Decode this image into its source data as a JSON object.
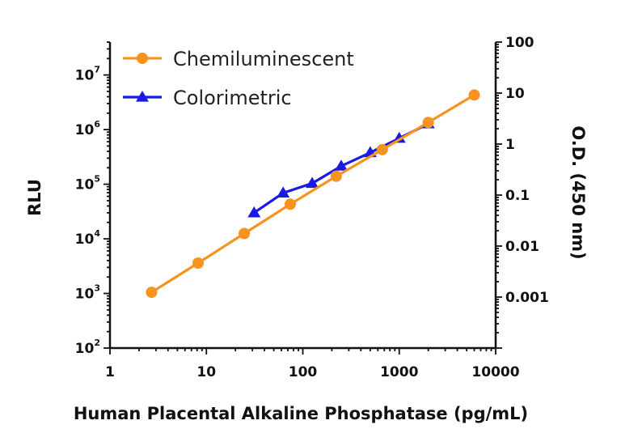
{
  "chart_data": {
    "type": "line",
    "title": "",
    "xlabel": "Human Placental Alkaline Phosphatase (pg/mL)",
    "ylabel": "RLU",
    "y2label": "O.D. (450 nm)",
    "x_scale": "log",
    "y_scale": "log",
    "y2_scale": "log",
    "xlim": [
      1,
      10000
    ],
    "ylim": [
      100,
      40000000
    ],
    "y2lim": [
      0.0001,
      100
    ],
    "x_ticks": [
      {
        "value": 1,
        "label": "1"
      },
      {
        "value": 10,
        "label": "10"
      },
      {
        "value": 100,
        "label": "100"
      },
      {
        "value": 1000,
        "label": "1000"
      },
      {
        "value": 10000,
        "label": "10000"
      }
    ],
    "y_ticks": [
      {
        "value": 100,
        "base": "10",
        "exp": "2"
      },
      {
        "value": 1000,
        "base": "10",
        "exp": "3"
      },
      {
        "value": 10000,
        "base": "10",
        "exp": "4"
      },
      {
        "value": 100000,
        "base": "10",
        "exp": "5"
      },
      {
        "value": 1000000,
        "base": "10",
        "exp": "6"
      },
      {
        "value": 10000000,
        "base": "10",
        "exp": "7"
      }
    ],
    "y2_ticks": [
      {
        "value": 0.001,
        "label": "0.001"
      },
      {
        "value": 0.01,
        "label": "0.01"
      },
      {
        "value": 0.1,
        "label": "0.1"
      },
      {
        "value": 1,
        "label": "1"
      },
      {
        "value": 10,
        "label": "10"
      },
      {
        "value": 100,
        "label": "100"
      }
    ],
    "grid": false,
    "legend_position": "top-left",
    "series": [
      {
        "name": "Chemiluminescent",
        "axis": "left",
        "color": "#F7931E",
        "marker": "circle",
        "x": [
          2.7,
          8.2,
          24.7,
          74.1,
          222,
          667,
          2000,
          6000
        ],
        "y": [
          1050,
          3600,
          12500,
          43000,
          140000,
          430000,
          1350000,
          4300000
        ]
      },
      {
        "name": "Colorimetric",
        "axis": "right",
        "color": "#1A1AE6",
        "marker": "triangle",
        "x": [
          31.25,
          62.5,
          125,
          250,
          500,
          1000,
          2000
        ],
        "y": [
          0.045,
          0.11,
          0.17,
          0.37,
          0.68,
          1.3,
          2.5
        ]
      }
    ]
  }
}
